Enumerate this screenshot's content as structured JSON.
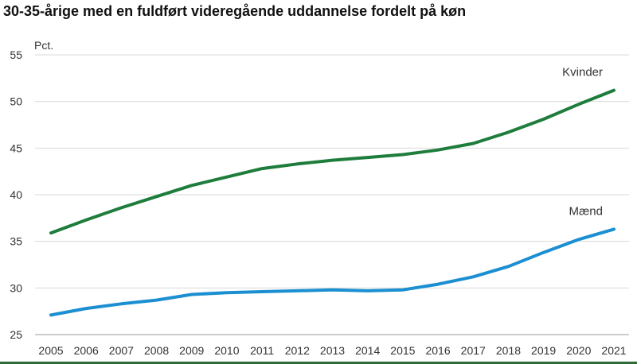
{
  "chart_data": {
    "type": "line",
    "title": "30-35-årige med en fuldført videregående uddannelse fordelt på køn",
    "ylabel": "Pct.",
    "xlabel": "",
    "x": [
      2005,
      2006,
      2007,
      2008,
      2009,
      2010,
      2011,
      2012,
      2013,
      2014,
      2015,
      2016,
      2017,
      2018,
      2019,
      2020,
      2021
    ],
    "ylim": [
      25,
      55
    ],
    "yticks": [
      25,
      30,
      35,
      40,
      45,
      50,
      55
    ],
    "grid": true,
    "series": [
      {
        "name": "Kvinder",
        "color": "#1e7d3c",
        "values": [
          35.9,
          37.3,
          38.6,
          39.8,
          41.0,
          41.9,
          42.8,
          43.3,
          43.7,
          44.0,
          44.3,
          44.8,
          45.5,
          46.7,
          48.1,
          49.7,
          51.2
        ]
      },
      {
        "name": "Mænd",
        "color": "#1b8fd1",
        "values": [
          27.1,
          27.8,
          28.3,
          28.7,
          29.3,
          29.5,
          29.6,
          29.7,
          29.8,
          29.7,
          29.8,
          30.4,
          31.2,
          32.3,
          33.8,
          35.2,
          36.3
        ]
      }
    ]
  }
}
